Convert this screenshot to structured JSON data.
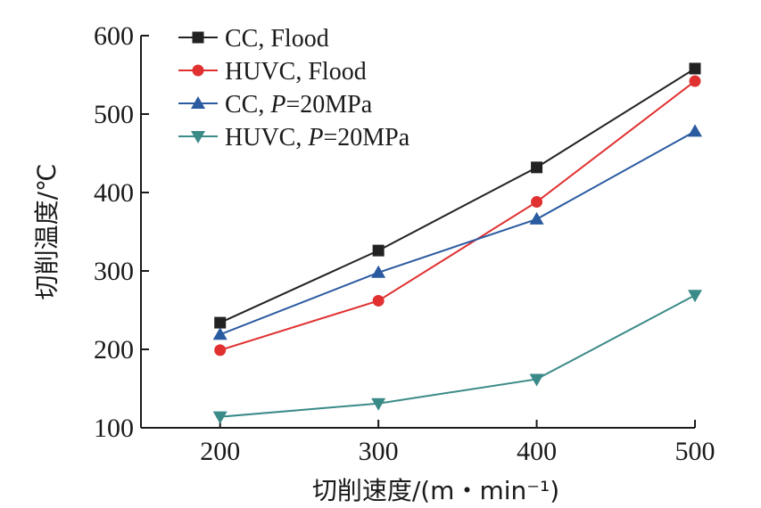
{
  "chart_data": {
    "type": "line",
    "xlabel": "切削速度/(m・min⁻¹)",
    "ylabel": "切削温度/℃",
    "x": [
      200,
      300,
      400,
      500
    ],
    "xticks": [
      200,
      300,
      400,
      500
    ],
    "yticks": [
      100,
      200,
      300,
      400,
      500,
      600
    ],
    "xlim": [
      150,
      500
    ],
    "ylim": [
      100,
      600
    ],
    "grid": false,
    "legend_position": "top-left",
    "series": [
      {
        "name": "CC, Flood",
        "values": [
          234,
          326,
          432,
          558
        ],
        "color": "#222222",
        "marker": "square"
      },
      {
        "name": "HUVC, Flood",
        "values": [
          199,
          262,
          388,
          542
        ],
        "color": "#e03030",
        "marker": "circle"
      },
      {
        "name": "CC, P=20MPa",
        "values": [
          219,
          298,
          366,
          478
        ],
        "color": "#2a5aa0",
        "marker": "triangle-up"
      },
      {
        "name": "HUVC, P=20MPa",
        "values": [
          114,
          131,
          162,
          269
        ],
        "color": "#3a8a88",
        "marker": "triangle-down"
      }
    ]
  }
}
